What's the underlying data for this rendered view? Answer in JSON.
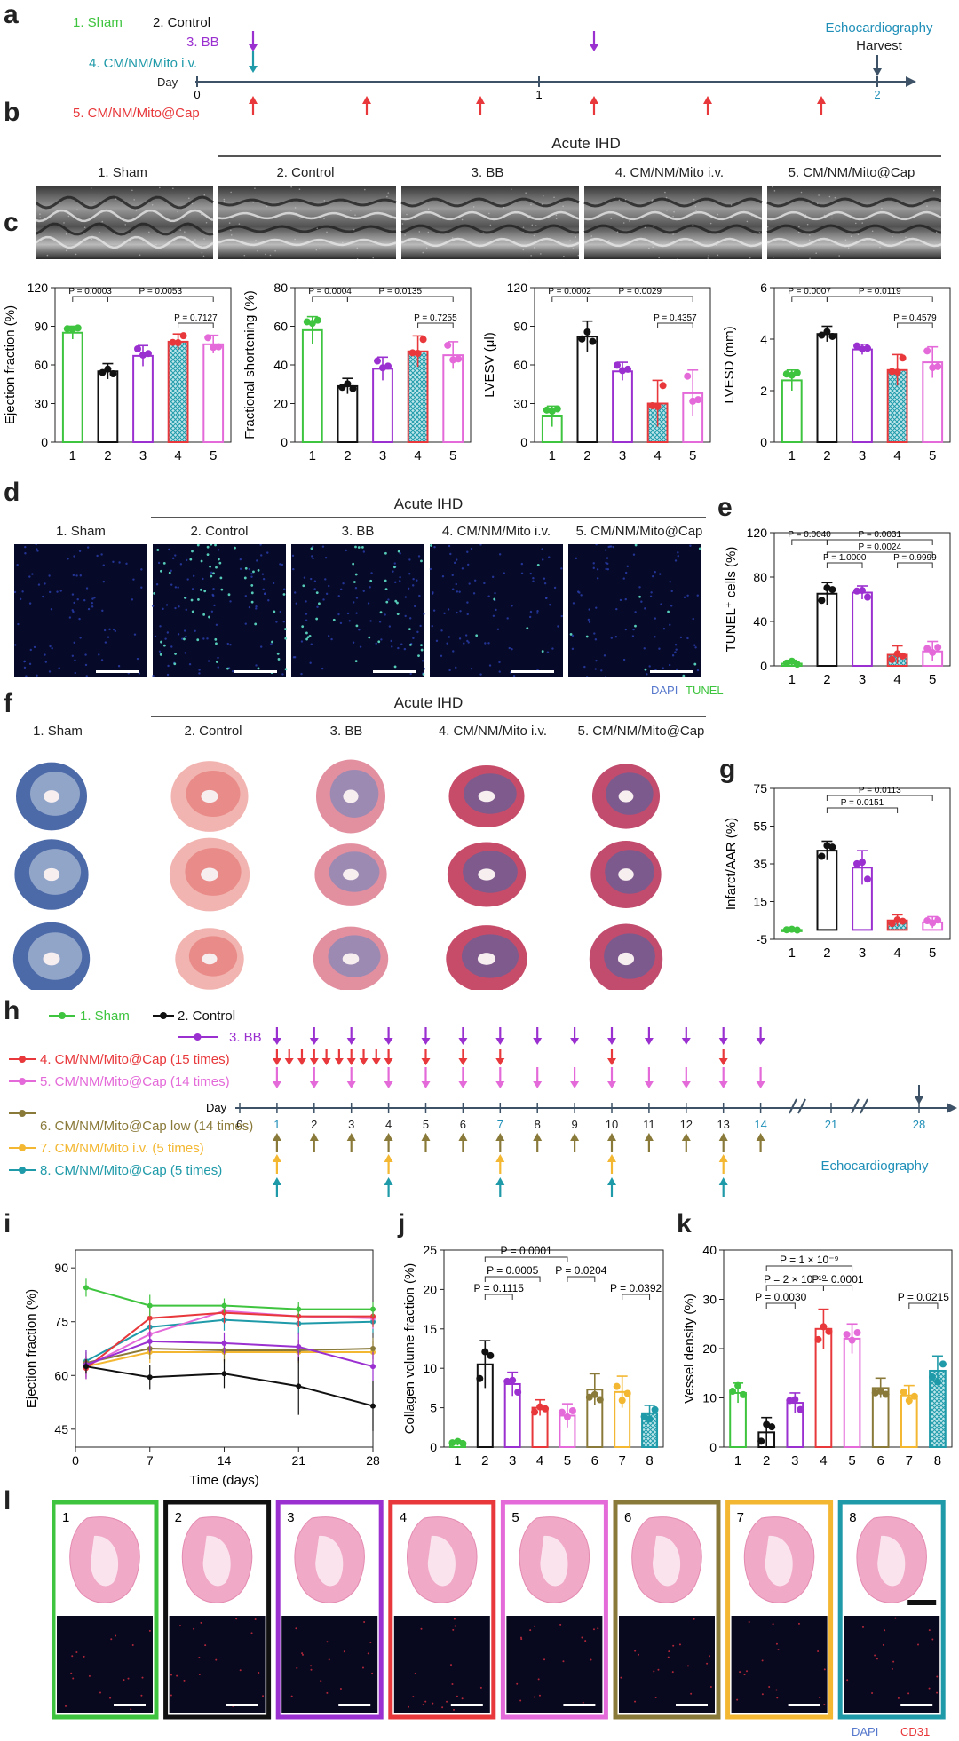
{
  "panel_letters": [
    "a",
    "b",
    "c",
    "d",
    "e",
    "f",
    "g",
    "h",
    "i",
    "j",
    "k",
    "l"
  ],
  "a": {
    "groups": [
      "1. Sham",
      "2. Control",
      "3. BB",
      "4. CM/NM/Mito i.v.",
      "5. CM/NM/Mito@Cap"
    ],
    "day_label": "Day",
    "ticks": [
      "0",
      "1",
      "2"
    ],
    "echo": "Echocardiography",
    "harvest": "Harvest"
  },
  "b": {
    "header": "Acute IHD",
    "groups": [
      "1. Sham",
      "2. Control",
      "3. BB",
      "4. CM/NM/Mito i.v.",
      "5. CM/NM/Mito@Cap"
    ]
  },
  "d": {
    "header": "Acute IHD",
    "groups": [
      "1. Sham",
      "2. Control",
      "3. BB",
      "4. CM/NM/Mito i.v.",
      "5. CM/NM/Mito@Cap"
    ],
    "dapi": "DAPI",
    "tunel": "TUNEL"
  },
  "f": {
    "header": "Acute IHD",
    "groups": [
      "1. Sham",
      "2. Control",
      "3. BB",
      "4. CM/NM/Mito i.v.",
      "5. CM/NM/Mito@Cap"
    ]
  },
  "h": {
    "legend": [
      "1. Sham",
      "2. Control",
      "3. BB",
      "4. CM/NM/Mito@Cap (15 times)",
      "5. CM/NM/Mito@Cap (14 times)",
      "6. CM/NM/Mito@Cap low (14 times)",
      "7. CM/NM/Mito i.v. (5 times)",
      "8. CM/NM/Mito@Cap (5 times)"
    ],
    "day_label": "Day",
    "ticks": [
      "0",
      "1",
      "2",
      "3",
      "4",
      "5",
      "6",
      "7",
      "8",
      "9",
      "10",
      "11",
      "12",
      "13",
      "14",
      "21",
      "28"
    ],
    "echo": "Echocardiography"
  },
  "l": {
    "nums": [
      "1",
      "2",
      "3",
      "4",
      "5",
      "6",
      "7",
      "8"
    ],
    "dapi": "DAPI",
    "cd31": "CD31"
  },
  "colors": {
    "g1": "#3ec43e",
    "g2": "#111111",
    "g3": "#9b30d0",
    "g4": "#e8383b",
    "g5": "#e46ad9",
    "g6": "#8a7a3a",
    "g7": "#f3b731",
    "g8": "#1f9aa9"
  },
  "chart_data": [
    {
      "id": "c1",
      "type": "bar",
      "categories": [
        "1",
        "2",
        "3",
        "4",
        "5"
      ],
      "values": [
        85,
        55,
        67,
        78,
        76
      ],
      "errors": [
        5,
        6,
        8,
        6,
        7
      ],
      "ylabel": "Ejection fraction (%)",
      "ylim": [
        0,
        120
      ],
      "yticks": [
        0,
        30,
        60,
        90,
        120
      ],
      "brackets": [
        {
          "a": 1,
          "b": 2,
          "label": "P = 0.0003",
          "lvl": 0
        },
        {
          "a": 2,
          "b": 5,
          "label": "P = 0.0053",
          "lvl": 0
        },
        {
          "a": 4,
          "b": 5,
          "label": "P = 0.7127",
          "lvl": 1
        }
      ]
    },
    {
      "id": "c2",
      "type": "bar",
      "categories": [
        "1",
        "2",
        "3",
        "4",
        "5"
      ],
      "values": [
        58,
        29,
        38,
        47,
        45
      ],
      "errors": [
        7,
        4,
        6,
        8,
        7
      ],
      "ylabel": "Fractional shortening (%)",
      "ylim": [
        0,
        80
      ],
      "yticks": [
        0,
        20,
        40,
        60,
        80
      ],
      "brackets": [
        {
          "a": 1,
          "b": 2,
          "label": "P = 0.0004",
          "lvl": 0
        },
        {
          "a": 2,
          "b": 5,
          "label": "P = 0.0135",
          "lvl": 0
        },
        {
          "a": 4,
          "b": 5,
          "label": "P = 0.7255",
          "lvl": 1
        }
      ]
    },
    {
      "id": "c3",
      "type": "bar",
      "categories": [
        "1",
        "2",
        "3",
        "4",
        "5"
      ],
      "values": [
        20,
        82,
        55,
        30,
        38
      ],
      "errors": [
        8,
        12,
        7,
        18,
        18
      ],
      "ylabel": "LVESV (μl)",
      "ylim": [
        0,
        120
      ],
      "yticks": [
        0,
        30,
        60,
        90,
        120
      ],
      "brackets": [
        {
          "a": 1,
          "b": 2,
          "label": "P = 0.0002",
          "lvl": 0
        },
        {
          "a": 2,
          "b": 5,
          "label": "P = 0.0029",
          "lvl": 0
        },
        {
          "a": 4,
          "b": 5,
          "label": "P = 0.4357",
          "lvl": 1
        }
      ]
    },
    {
      "id": "c4",
      "type": "bar",
      "categories": [
        "1",
        "2",
        "3",
        "4",
        "5"
      ],
      "values": [
        2.4,
        4.2,
        3.6,
        2.8,
        3.1
      ],
      "errors": [
        0.4,
        0.3,
        0.2,
        0.6,
        0.6
      ],
      "ylabel": "LVESD (mm)",
      "ylim": [
        0,
        6
      ],
      "yticks": [
        0,
        2,
        4,
        6
      ],
      "brackets": [
        {
          "a": 1,
          "b": 2,
          "label": "P = 0.0007",
          "lvl": 0
        },
        {
          "a": 2,
          "b": 5,
          "label": "P = 0.0119",
          "lvl": 0
        },
        {
          "a": 4,
          "b": 5,
          "label": "P = 0.4579",
          "lvl": 1
        }
      ]
    },
    {
      "id": "e",
      "type": "bar",
      "categories": [
        "1",
        "2",
        "3",
        "4",
        "5"
      ],
      "values": [
        2,
        65,
        66,
        10,
        13
      ],
      "errors": [
        3,
        10,
        6,
        8,
        9
      ],
      "ylabel": "TUNEL⁺ cells (%)",
      "ylim": [
        0,
        120
      ],
      "yticks": [
        0,
        40,
        80,
        120
      ],
      "brackets": [
        {
          "a": 1,
          "b": 2,
          "label": "P = 0.0040",
          "lvl": 3
        },
        {
          "a": 2,
          "b": 5,
          "label": "P = 0.0031",
          "lvl": 3
        },
        {
          "a": 2,
          "b": 5,
          "label": "P = 0.0024",
          "lvl": 2
        },
        {
          "a": 2,
          "b": 3,
          "label": "P = 1.0000",
          "lvl": 1
        },
        {
          "a": 4,
          "b": 5,
          "label": "P = 0.9999",
          "lvl": 1
        }
      ]
    },
    {
      "id": "g",
      "type": "bar",
      "categories": [
        "1",
        "2",
        "3",
        "4",
        "5"
      ],
      "values": [
        0,
        42,
        33,
        5,
        4
      ],
      "errors": [
        0.5,
        5,
        9,
        3,
        3
      ],
      "ylabel": "Infarct/AAR (%)",
      "ylim": [
        -5,
        75
      ],
      "yticks": [
        -5,
        15,
        35,
        55,
        75
      ],
      "brackets": [
        {
          "a": 2,
          "b": 4,
          "label": "P = 0.0151",
          "lvl": 1
        },
        {
          "a": 2,
          "b": 5,
          "label": "P = 0.0113",
          "lvl": 2
        }
      ]
    },
    {
      "id": "i",
      "type": "line",
      "x": [
        1,
        7,
        14,
        21,
        28
      ],
      "xlabel": "Time (days)",
      "ylabel": "Ejection fraction (%)",
      "xlim": [
        0,
        28
      ],
      "ylim": [
        40,
        95
      ],
      "xticks": [
        0,
        7,
        14,
        21,
        28
      ],
      "yticks": [
        45,
        60,
        75,
        90
      ],
      "series": [
        {
          "values": [
            84.5,
            79.5,
            79.5,
            78.5,
            78.5
          ],
          "err": [
            2.5,
            3,
            2,
            2,
            2
          ]
        },
        {
          "values": [
            62.5,
            59.5,
            60.5,
            57,
            51.5
          ],
          "err": [
            2,
            3.5,
            4,
            8,
            7
          ]
        },
        {
          "values": [
            63,
            69.5,
            69,
            68,
            62.5
          ],
          "err": [
            4,
            3,
            3,
            4,
            4
          ]
        },
        {
          "values": [
            62,
            76,
            77.5,
            76.5,
            76.5
          ],
          "err": [
            3,
            4,
            3,
            3,
            3
          ]
        },
        {
          "values": [
            62.5,
            71.5,
            78,
            76.5,
            76
          ],
          "err": [
            3,
            3,
            2,
            3,
            3
          ]
        },
        {
          "values": [
            63.5,
            67.5,
            67,
            67,
            67.5
          ],
          "err": [
            3,
            3,
            3,
            3,
            3
          ]
        },
        {
          "values": [
            62.5,
            66.5,
            66.5,
            66.5,
            66.5
          ],
          "err": [
            3,
            3,
            3,
            3,
            3
          ]
        },
        {
          "values": [
            64,
            73.5,
            75.5,
            74.5,
            75
          ],
          "err": [
            3,
            3,
            3,
            3,
            3
          ]
        }
      ]
    },
    {
      "id": "j",
      "type": "bar",
      "categories": [
        "1",
        "2",
        "3",
        "4",
        "5",
        "6",
        "7",
        "8"
      ],
      "values": [
        0.5,
        10.5,
        8,
        5,
        4,
        7.3,
        7,
        4.3
      ],
      "errors": [
        0.3,
        3,
        1.5,
        1,
        1.5,
        2,
        2,
        1
      ],
      "ylabel": "Collagen volume fraction (%)",
      "ylim": [
        0,
        25
      ],
      "yticks": [
        0,
        5,
        10,
        15,
        20,
        25
      ],
      "brackets": [
        {
          "a": 2,
          "b": 3,
          "label": "P = 0.1115",
          "lvl": 1
        },
        {
          "a": 2,
          "b": 4,
          "label": "P = 0.0005",
          "lvl": 2
        },
        {
          "a": 2,
          "b": 5,
          "label": "P = 0.0001",
          "lvl": 3
        },
        {
          "a": 5,
          "b": 6,
          "label": "P = 0.0204",
          "lvl": 2
        },
        {
          "a": 7,
          "b": 8,
          "label": "P = 0.0392",
          "lvl": 1
        }
      ]
    },
    {
      "id": "k",
      "type": "bar",
      "categories": [
        "1",
        "2",
        "3",
        "4",
        "5",
        "6",
        "7",
        "8"
      ],
      "values": [
        11,
        3,
        9,
        24,
        22,
        12,
        10.5,
        15.5
      ],
      "errors": [
        2,
        3,
        2,
        4,
        3,
        2,
        2,
        3
      ],
      "ylabel": "Vessel density (%)",
      "ylim": [
        0,
        40
      ],
      "yticks": [
        0,
        10,
        20,
        30,
        40
      ],
      "brackets": [
        {
          "a": 2,
          "b": 3,
          "label": "P = 0.0030",
          "lvl": 1
        },
        {
          "a": 2,
          "b": 4,
          "label": "P = 2 × 10⁻¹⁰",
          "lvl": 2
        },
        {
          "a": 2,
          "b": 5,
          "label": "P = 1 × 10⁻⁹",
          "lvl": 3
        },
        {
          "a": 4,
          "b": 5,
          "label": "P = 0.0001",
          "lvl": 2
        },
        {
          "a": 7,
          "b": 8,
          "label": "P = 0.0215",
          "lvl": 1
        }
      ]
    }
  ]
}
